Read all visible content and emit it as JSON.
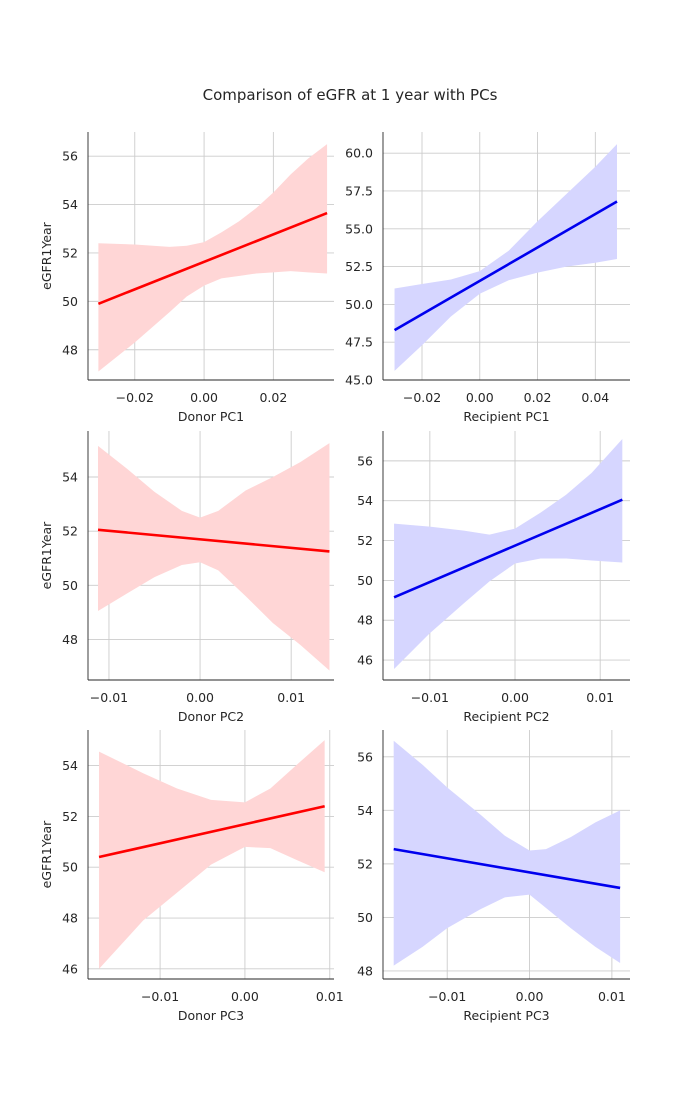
{
  "figure": {
    "title": "Comparison of eGFR at 1 year with PCs"
  },
  "chart_data": [
    {
      "type": "line",
      "position": "row 1, column 1",
      "xlabel": "Donor PC1",
      "ylabel": "eGFR1Year",
      "xlim": [
        -0.0335,
        0.0375
      ],
      "ylim": [
        46.75,
        57.0
      ],
      "xticks": [
        -0.02,
        0.0,
        0.02
      ],
      "xtick_labels": [
        "−0.02",
        "0.00",
        "0.02"
      ],
      "yticks": [
        48,
        50,
        52,
        54,
        56
      ],
      "ytick_labels": [
        "48",
        "50",
        "52",
        "54",
        "56"
      ],
      "line_color": "#ff0000",
      "band_color": "#ffd6d6",
      "series": [
        {
          "fit_line": {
            "x": [
              -0.0305,
              0.0355
            ],
            "y": [
              49.9,
              53.65
            ]
          },
          "confidence_band": {
            "x": [
              -0.0305,
              -0.02,
              -0.01,
              -0.005,
              0.0,
              0.005,
              0.01,
              0.015,
              0.02,
              0.025,
              0.03,
              0.0355
            ],
            "lower": [
              47.1,
              48.3,
              49.55,
              50.2,
              50.65,
              50.95,
              51.05,
              51.15,
              51.2,
              51.25,
              51.2,
              51.15
            ],
            "upper": [
              52.4,
              52.35,
              52.25,
              52.3,
              52.45,
              52.85,
              53.3,
              53.85,
              54.5,
              55.25,
              55.9,
              56.5
            ]
          }
        }
      ]
    },
    {
      "type": "line",
      "position": "row 1, column 2",
      "xlabel": "Recipient PC1",
      "ylabel": "",
      "xlim": [
        -0.0335,
        0.052
      ],
      "ylim": [
        45.0,
        61.4
      ],
      "xticks": [
        -0.02,
        0.0,
        0.02,
        0.04
      ],
      "xtick_labels": [
        "−0.02",
        "0.00",
        "0.02",
        "0.04"
      ],
      "yticks": [
        45.0,
        47.5,
        50.0,
        52.5,
        55.0,
        57.5,
        60.0
      ],
      "ytick_labels": [
        "45.0",
        "47.5",
        "50.0",
        "52.5",
        "55.0",
        "57.5",
        "60.0"
      ],
      "line_color": "#0000ee",
      "band_color": "#d6d6ff",
      "series": [
        {
          "fit_line": {
            "x": [
              -0.0295,
              0.0475
            ],
            "y": [
              48.3,
              56.8
            ]
          },
          "confidence_band": {
            "x": [
              -0.0295,
              -0.02,
              -0.01,
              0.0,
              0.01,
              0.02,
              0.03,
              0.04,
              0.0475
            ],
            "lower": [
              45.6,
              47.3,
              49.2,
              50.7,
              51.6,
              52.1,
              52.5,
              52.75,
              53.0
            ],
            "upper": [
              51.05,
              51.35,
              51.65,
              52.2,
              53.55,
              55.5,
              57.3,
              59.1,
              60.6
            ]
          }
        }
      ]
    },
    {
      "type": "line",
      "position": "row 2, column 1",
      "xlabel": "Donor PC2",
      "ylabel": "eGFR1Year",
      "xlim": [
        -0.0123,
        0.0147
      ],
      "ylim": [
        46.5,
        55.7
      ],
      "xticks": [
        -0.01,
        0.0,
        0.01
      ],
      "xtick_labels": [
        "−0.01",
        "0.00",
        "0.01"
      ],
      "yticks": [
        48,
        50,
        52,
        54
      ],
      "ytick_labels": [
        "48",
        "50",
        "52",
        "54"
      ],
      "line_color": "#ff0000",
      "band_color": "#ffd6d6",
      "series": [
        {
          "fit_line": {
            "x": [
              -0.0112,
              0.0142
            ],
            "y": [
              52.05,
              51.25
            ]
          },
          "confidence_band": {
            "x": [
              -0.0112,
              -0.008,
              -0.005,
              -0.002,
              0.0,
              0.002,
              0.005,
              0.008,
              0.011,
              0.0142
            ],
            "lower": [
              49.05,
              49.7,
              50.3,
              50.75,
              50.85,
              50.55,
              49.6,
              48.6,
              47.8,
              46.85
            ],
            "upper": [
              55.15,
              54.3,
              53.45,
              52.75,
              52.5,
              52.75,
              53.5,
              54.0,
              54.55,
              55.25
            ]
          }
        }
      ]
    },
    {
      "type": "line",
      "position": "row 2, column 2",
      "xlabel": "Recipient PC2",
      "ylabel": "",
      "xlim": [
        -0.0155,
        0.0135
      ],
      "ylim": [
        45.0,
        57.5
      ],
      "xticks": [
        -0.01,
        0.0,
        0.01
      ],
      "xtick_labels": [
        "−0.01",
        "0.00",
        "0.01"
      ],
      "yticks": [
        46,
        48,
        50,
        52,
        54,
        56
      ],
      "ytick_labels": [
        "46",
        "48",
        "50",
        "52",
        "54",
        "56"
      ],
      "line_color": "#0000ee",
      "band_color": "#d6d6ff",
      "series": [
        {
          "fit_line": {
            "x": [
              -0.0142,
              0.0126
            ],
            "y": [
              49.15,
              54.05
            ]
          },
          "confidence_band": {
            "x": [
              -0.0142,
              -0.01,
              -0.006,
              -0.003,
              0.0,
              0.003,
              0.006,
              0.009,
              0.0126
            ],
            "lower": [
              45.55,
              47.35,
              48.85,
              49.95,
              50.85,
              51.1,
              51.1,
              51.0,
              50.9
            ],
            "upper": [
              52.85,
              52.7,
              52.5,
              52.3,
              52.6,
              53.4,
              54.3,
              55.4,
              57.1
            ]
          }
        }
      ]
    },
    {
      "type": "line",
      "position": "row 3, column 1",
      "xlabel": "Donor PC3",
      "ylabel": "eGFR1Year",
      "xlim": [
        -0.0185,
        0.0105
      ],
      "ylim": [
        45.6,
        55.4
      ],
      "xticks": [
        -0.01,
        0.0,
        0.01
      ],
      "xtick_labels": [
        "−0.01",
        "0.00",
        "0.01"
      ],
      "yticks": [
        46,
        48,
        50,
        52,
        54
      ],
      "ytick_labels": [
        "46",
        "48",
        "50",
        "52",
        "54"
      ],
      "line_color": "#ff0000",
      "band_color": "#ffd6d6",
      "series": [
        {
          "fit_line": {
            "x": [
              -0.0172,
              0.0094
            ],
            "y": [
              50.4,
              52.4
            ]
          },
          "confidence_band": {
            "x": [
              -0.0172,
              -0.012,
              -0.008,
              -0.004,
              0.0,
              0.003,
              0.006,
              0.0094
            ],
            "lower": [
              46.0,
              47.9,
              49.0,
              50.1,
              50.8,
              50.75,
              50.3,
              49.8
            ],
            "upper": [
              54.55,
              53.7,
              53.1,
              52.65,
              52.55,
              53.1,
              54.0,
              55.0
            ]
          }
        }
      ]
    },
    {
      "type": "line",
      "position": "row 3, column 2",
      "xlabel": "Recipient PC3",
      "ylabel": "",
      "xlim": [
        -0.0178,
        0.0122
      ],
      "ylim": [
        47.7,
        57.0
      ],
      "xticks": [
        -0.01,
        0.0,
        0.01
      ],
      "xtick_labels": [
        "−0.01",
        "0.00",
        "0.01"
      ],
      "yticks": [
        48,
        50,
        52,
        54,
        56
      ],
      "ytick_labels": [
        "48",
        "50",
        "52",
        "54",
        "56"
      ],
      "line_color": "#0000ee",
      "band_color": "#d6d6ff",
      "series": [
        {
          "fit_line": {
            "x": [
              -0.0165,
              0.011
            ],
            "y": [
              52.55,
              51.1
            ]
          },
          "confidence_band": {
            "x": [
              -0.0165,
              -0.013,
              -0.01,
              -0.006,
              -0.003,
              0.0,
              0.002,
              0.005,
              0.008,
              0.011
            ],
            "lower": [
              48.2,
              48.9,
              49.6,
              50.3,
              50.75,
              50.85,
              50.35,
              49.6,
              48.9,
              48.3
            ],
            "upper": [
              56.6,
              55.7,
              54.85,
              53.85,
              53.05,
              52.5,
              52.55,
              53.0,
              53.55,
              54.0
            ]
          }
        }
      ]
    }
  ]
}
